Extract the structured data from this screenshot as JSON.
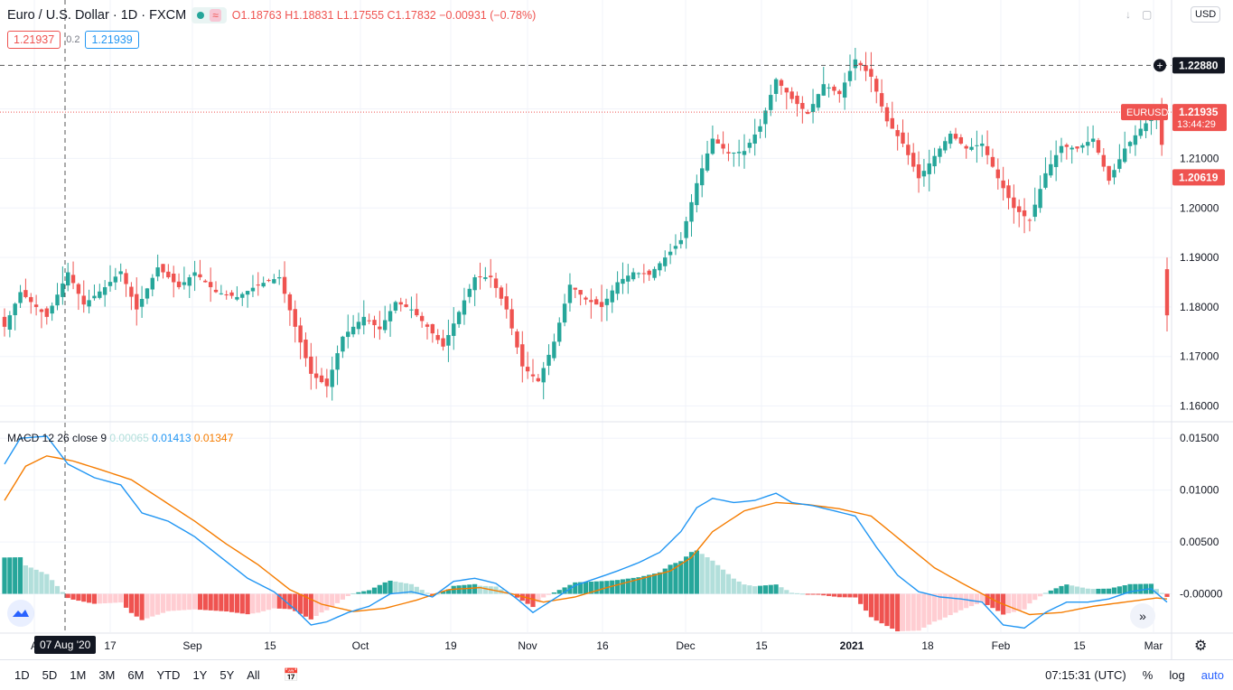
{
  "header": {
    "symbol": "Euro / U.S. Dollar · 1D · FXCM",
    "wave_icon": "≈",
    "open": "O1.18763",
    "high": "H1.18831",
    "low": "L1.17555",
    "close": "C1.17832",
    "change": "−0.00931 (−0.78%)"
  },
  "quote": {
    "bid": "1.21937",
    "spread": "0.2",
    "ask": "1.21939"
  },
  "currency_button": "USD",
  "icons": {
    "arrow": "arrow-down-icon",
    "fullscreen": "fullscreen-icon",
    "logo": "tradingview-logo-icon",
    "scroll": "scroll-right-icon",
    "settings": "gear-icon",
    "calendar": "calendar-icon"
  },
  "price_labels": {
    "crosshair": "1.22880",
    "symbol_tag": "EURUSD",
    "last": "1.21935",
    "countdown": "13:44:29",
    "prev": "1.20619"
  },
  "macd_legend": {
    "name": "MACD 12 26 close 9",
    "hist": "0.00065",
    "macd": "0.01413",
    "signal": "0.01347"
  },
  "crosshair_date": "07 Aug '20",
  "bottom": {
    "ranges": [
      "1D",
      "5D",
      "1M",
      "3M",
      "6M",
      "YTD",
      "1Y",
      "5Y",
      "All"
    ],
    "time": "07:15:31 (UTC)",
    "percent": "%",
    "log": "log",
    "auto": "auto"
  },
  "colors": {
    "up": "#26a69a",
    "down": "#ef5350",
    "macd": "#2196f3",
    "signal": "#f57c00",
    "hist_up_light": "#b2dfdb",
    "hist_down_light": "#ffcdd2",
    "grid": "#f0f3fa"
  },
  "chart_data": [
    {
      "type": "candlestick",
      "title": "Euro / U.S. Dollar · 1D · FXCM",
      "y_ticks": [
        "1.16000",
        "1.17000",
        "1.18000",
        "1.19000",
        "1.20000",
        "1.21000",
        "1.22880"
      ],
      "x_ticks": [
        "A",
        "17",
        "Sep",
        "15",
        "Oct",
        "19",
        "Nov",
        "16",
        "Dec",
        "15",
        "2021",
        "18",
        "Feb",
        "15",
        "Mar"
      ],
      "ylim": [
        1.157,
        1.242
      ],
      "close_anchors": [
        [
          0,
          1.176
        ],
        [
          3,
          1.183
        ],
        [
          8,
          1.178
        ],
        [
          12,
          1.187
        ],
        [
          15,
          1.1805
        ],
        [
          19,
          1.184
        ],
        [
          22,
          1.1872
        ],
        [
          25,
          1.1795
        ],
        [
          29,
          1.188
        ],
        [
          33,
          1.184
        ],
        [
          36,
          1.187
        ],
        [
          40,
          1.183
        ],
        [
          44,
          1.182
        ],
        [
          48,
          1.1845
        ],
        [
          52,
          1.186
        ],
        [
          55,
          1.176
        ],
        [
          58,
          1.1665
        ],
        [
          61,
          1.164
        ],
        [
          64,
          1.174
        ],
        [
          68,
          1.178
        ],
        [
          71,
          1.1755
        ],
        [
          74,
          1.181
        ],
        [
          77,
          1.1795
        ],
        [
          80,
          1.176
        ],
        [
          83,
          1.172
        ],
        [
          86,
          1.179
        ],
        [
          89,
          1.186
        ],
        [
          92,
          1.186
        ],
        [
          95,
          1.1795
        ],
        [
          98,
          1.168
        ],
        [
          101,
          1.165
        ],
        [
          104,
          1.173
        ],
        [
          107,
          1.1845
        ],
        [
          110,
          1.1815
        ],
        [
          113,
          1.18
        ],
        [
          116,
          1.185
        ],
        [
          119,
          1.187
        ],
        [
          122,
          1.1865
        ],
        [
          125,
          1.19
        ],
        [
          128,
          1.1935
        ],
        [
          131,
          1.205
        ],
        [
          134,
          1.214
        ],
        [
          137,
          1.211
        ],
        [
          140,
          1.2115
        ],
        [
          143,
          1.2165
        ],
        [
          146,
          1.226
        ],
        [
          149,
          1.222
        ],
        [
          152,
          1.219
        ],
        [
          155,
          1.225
        ],
        [
          158,
          1.223
        ],
        [
          161,
          1.23
        ],
        [
          164,
          1.2265
        ],
        [
          167,
          1.2175
        ],
        [
          170,
          1.213
        ],
        [
          173,
          1.206
        ],
        [
          176,
          1.2105
        ],
        [
          179,
          1.215
        ],
        [
          182,
          1.212
        ],
        [
          185,
          1.213
        ],
        [
          188,
          1.206
        ],
        [
          191,
          1.2
        ],
        [
          194,
          1.1975
        ],
        [
          197,
          1.207
        ],
        [
          200,
          1.2125
        ],
        [
          203,
          1.212
        ],
        [
          206,
          1.214
        ],
        [
          209,
          1.2055
        ],
        [
          212,
          1.212
        ],
        [
          215,
          1.216
        ],
        [
          218,
          1.2193
        ],
        [
          220,
          1.2062
        ]
      ],
      "last_candle": {
        "open": 1.18763,
        "high": 1.18831,
        "low": 1.17555,
        "close": 1.17832
      }
    },
    {
      "type": "macd",
      "title": "MACD 12 26 close 9",
      "y_ticks": [
        "0.01500",
        "0.01000",
        "0.00500",
        "-0.00000"
      ],
      "ylim": [
        -0.0037,
        0.0165
      ],
      "macd_anchors": [
        [
          0,
          0.0125
        ],
        [
          3,
          0.015
        ],
        [
          8,
          0.0152
        ],
        [
          12,
          0.0125
        ],
        [
          17,
          0.0112
        ],
        [
          22,
          0.0105
        ],
        [
          26,
          0.0078
        ],
        [
          31,
          0.007
        ],
        [
          36,
          0.0055
        ],
        [
          41,
          0.0035
        ],
        [
          46,
          0.0015
        ],
        [
          51,
          0.0002
        ],
        [
          55,
          -0.0015
        ],
        [
          58,
          -0.003
        ],
        [
          61,
          -0.0027
        ],
        [
          65,
          -0.0018
        ],
        [
          69,
          -0.0012
        ],
        [
          73,
          0.0
        ],
        [
          77,
          0.0002
        ],
        [
          81,
          -0.0003
        ],
        [
          85,
          0.0012
        ],
        [
          89,
          0.0015
        ],
        [
          93,
          0.001
        ],
        [
          97,
          -0.0005
        ],
        [
          100,
          -0.0018
        ],
        [
          104,
          -0.0005
        ],
        [
          108,
          0.0008
        ],
        [
          112,
          0.0015
        ],
        [
          116,
          0.0022
        ],
        [
          120,
          0.003
        ],
        [
          124,
          0.004
        ],
        [
          128,
          0.006
        ],
        [
          131,
          0.0083
        ],
        [
          134,
          0.0092
        ],
        [
          138,
          0.0088
        ],
        [
          142,
          0.009
        ],
        [
          146,
          0.0097
        ],
        [
          149,
          0.0088
        ],
        [
          153,
          0.0085
        ],
        [
          157,
          0.008
        ],
        [
          161,
          0.0075
        ],
        [
          165,
          0.0045
        ],
        [
          169,
          0.0018
        ],
        [
          173,
          0.0002
        ],
        [
          177,
          -0.0003
        ],
        [
          181,
          -0.0005
        ],
        [
          185,
          -0.0008
        ],
        [
          189,
          -0.003
        ],
        [
          193,
          -0.0033
        ],
        [
          197,
          -0.0018
        ],
        [
          201,
          -0.0008
        ],
        [
          205,
          -0.0008
        ],
        [
          209,
          -0.0005
        ],
        [
          213,
          0.0002
        ],
        [
          217,
          0.0005
        ],
        [
          220,
          -0.0008
        ]
      ],
      "signal_anchors": [
        [
          0,
          0.009
        ],
        [
          4,
          0.0123
        ],
        [
          8,
          0.0133
        ],
        [
          13,
          0.0128
        ],
        [
          18,
          0.012
        ],
        [
          24,
          0.011
        ],
        [
          30,
          0.009
        ],
        [
          36,
          0.007
        ],
        [
          42,
          0.0048
        ],
        [
          48,
          0.0028
        ],
        [
          54,
          0.0004
        ],
        [
          60,
          -0.001
        ],
        [
          66,
          -0.0017
        ],
        [
          72,
          -0.0014
        ],
        [
          78,
          -0.0006
        ],
        [
          84,
          0.0004
        ],
        [
          90,
          0.0006
        ],
        [
          96,
          0.0
        ],
        [
          102,
          -0.0008
        ],
        [
          108,
          -0.0003
        ],
        [
          114,
          0.0006
        ],
        [
          120,
          0.0014
        ],
        [
          126,
          0.0022
        ],
        [
          130,
          0.0035
        ],
        [
          134,
          0.006
        ],
        [
          140,
          0.008
        ],
        [
          146,
          0.0088
        ],
        [
          152,
          0.0086
        ],
        [
          158,
          0.0082
        ],
        [
          164,
          0.0075
        ],
        [
          170,
          0.005
        ],
        [
          176,
          0.0025
        ],
        [
          182,
          0.0008
        ],
        [
          188,
          -0.0008
        ],
        [
          194,
          -0.002
        ],
        [
          200,
          -0.0018
        ],
        [
          206,
          -0.0012
        ],
        [
          212,
          -0.0008
        ],
        [
          218,
          -0.0004
        ],
        [
          220,
          -0.0005
        ]
      ]
    }
  ]
}
